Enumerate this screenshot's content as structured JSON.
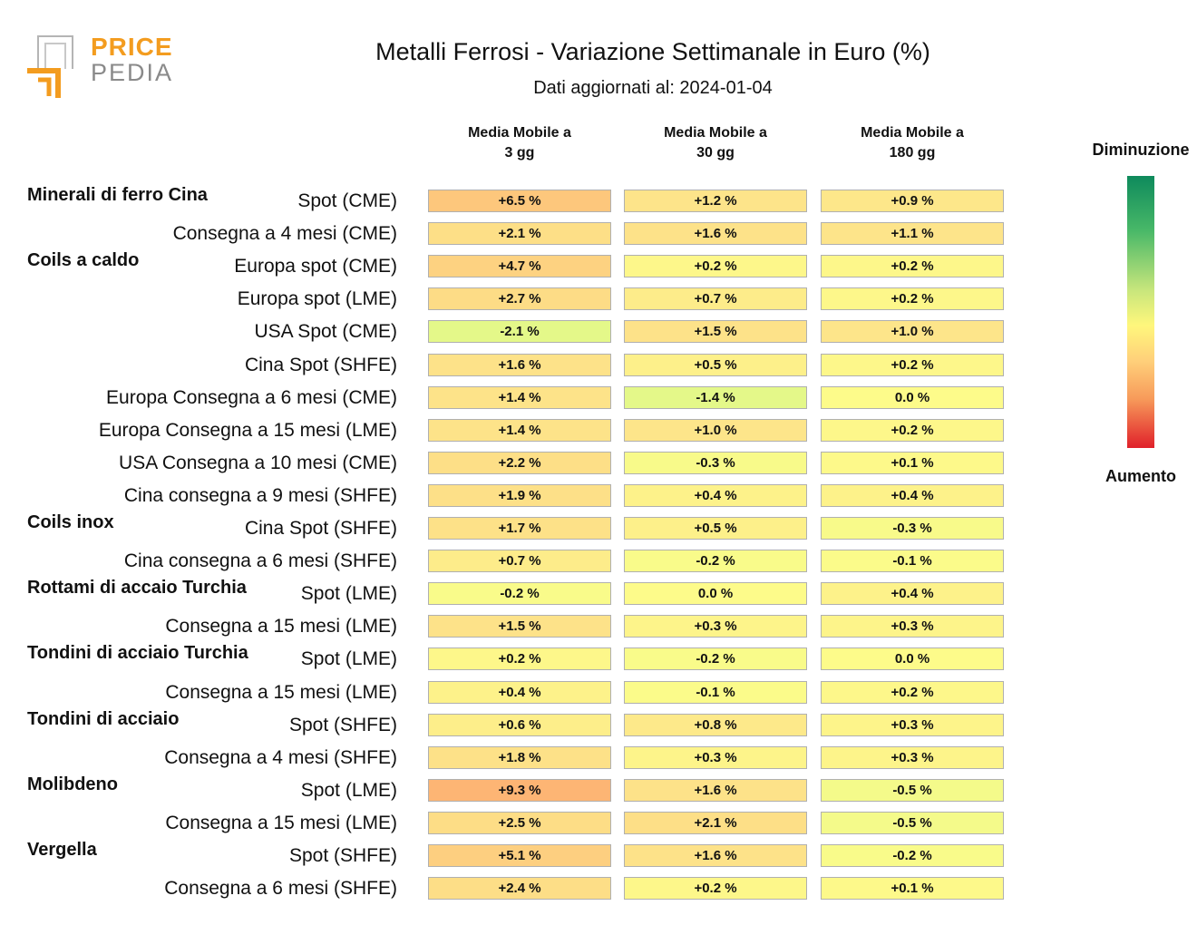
{
  "header": {
    "logo_price": "PRICE",
    "logo_pedia": "PEDIA",
    "title": "Metalli Ferrosi - Variazione Settimanale in Euro (%)",
    "subtitle": "Dati aggiornati al: 2024-01-04"
  },
  "columns": [
    "Media Mobile a\n3 gg",
    "Media Mobile a\n30 gg",
    "Media Mobile a\n180 gg"
  ],
  "legend": {
    "top_label": "Diminuzione",
    "bottom_label": "Aumento",
    "colors": [
      "#0e8a5c",
      "#48b868",
      "#c8e67c",
      "#fff77c",
      "#ffd07a",
      "#f79a5a",
      "#e0202a"
    ]
  },
  "chart_data": {
    "type": "heatmap",
    "title": "Metalli Ferrosi - Variazione Settimanale in Euro (%)",
    "subtitle": "Dati aggiornati al: 2024-01-04",
    "unit": "%",
    "columns": [
      "Media Mobile a 3 gg",
      "Media Mobile a 30 gg",
      "Media Mobile a 180 gg"
    ],
    "groups": [
      {
        "name": "Minerali di ferro Cina",
        "rows": [
          {
            "label": "Spot (CME)",
            "values": [
              6.5,
              1.2,
              0.9
            ]
          },
          {
            "label": "Consegna a 4 mesi (CME)",
            "values": [
              2.1,
              1.6,
              1.1
            ]
          }
        ]
      },
      {
        "name": "Coils a caldo",
        "rows": [
          {
            "label": "Europa spot (CME)",
            "values": [
              4.7,
              0.2,
              0.2
            ]
          },
          {
            "label": "Europa spot (LME)",
            "values": [
              2.7,
              0.7,
              0.2
            ]
          },
          {
            "label": "USA Spot (CME)",
            "values": [
              -2.1,
              1.5,
              1.0
            ]
          },
          {
            "label": "Cina Spot (SHFE)",
            "values": [
              1.6,
              0.5,
              0.2
            ]
          },
          {
            "label": "Europa Consegna a 6 mesi (CME)",
            "values": [
              1.4,
              -1.4,
              0.0
            ]
          },
          {
            "label": "Europa Consegna a 15 mesi (LME)",
            "values": [
              1.4,
              1.0,
              0.2
            ]
          },
          {
            "label": "USA Consegna a 10 mesi (CME)",
            "values": [
              2.2,
              -0.3,
              0.1
            ]
          },
          {
            "label": "Cina consegna a 9 mesi (SHFE)",
            "values": [
              1.9,
              0.4,
              0.4
            ]
          }
        ]
      },
      {
        "name": "Coils inox",
        "rows": [
          {
            "label": "Cina Spot (SHFE)",
            "values": [
              1.7,
              0.5,
              -0.3
            ]
          },
          {
            "label": "Cina consegna a 6 mesi (SHFE)",
            "values": [
              0.7,
              -0.2,
              -0.1
            ]
          }
        ]
      },
      {
        "name": "Rottami di accaio Turchia",
        "rows": [
          {
            "label": "Spot (LME)",
            "values": [
              -0.2,
              0.0,
              0.4
            ]
          },
          {
            "label": "Consegna a 15 mesi (LME)",
            "values": [
              1.5,
              0.3,
              0.3
            ]
          }
        ]
      },
      {
        "name": "Tondini di acciaio Turchia",
        "rows": [
          {
            "label": "Spot (LME)",
            "values": [
              0.2,
              -0.2,
              0.0
            ]
          },
          {
            "label": "Consegna a 15 mesi (LME)",
            "values": [
              0.4,
              -0.1,
              0.2
            ]
          }
        ]
      },
      {
        "name": "Tondini di acciaio",
        "rows": [
          {
            "label": "Spot (SHFE)",
            "values": [
              0.6,
              0.8,
              0.3
            ]
          },
          {
            "label": "Consegna a 4 mesi (SHFE)",
            "values": [
              1.8,
              0.3,
              0.3
            ]
          }
        ]
      },
      {
        "name": "Molibdeno",
        "rows": [
          {
            "label": "Spot (LME)",
            "values": [
              9.3,
              1.6,
              -0.5
            ]
          },
          {
            "label": "Consegna a 15 mesi (LME)",
            "values": [
              2.5,
              2.1,
              -0.5
            ]
          }
        ]
      },
      {
        "name": "Vergella",
        "rows": [
          {
            "label": "Spot (SHFE)",
            "values": [
              5.1,
              1.6,
              -0.2
            ]
          },
          {
            "label": "Consegna a 6 mesi (SHFE)",
            "values": [
              2.4,
              0.2,
              0.1
            ]
          }
        ]
      }
    ]
  }
}
